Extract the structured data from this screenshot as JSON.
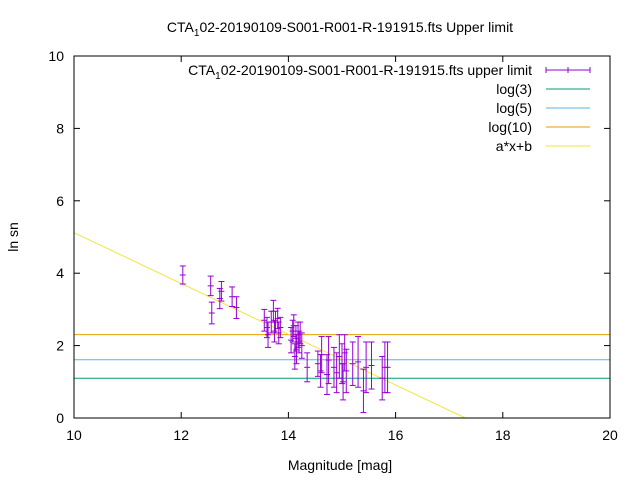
{
  "chart_data": {
    "type": "scatter",
    "title": {
      "prefix": "CTA",
      "subscript": "1",
      "suffix": "02-20190109-S001-R001-R-191915.fts Upper limit"
    },
    "xlabel": "Magnitude [mag]",
    "ylabel": "ln sn",
    "xlim": [
      10,
      20
    ],
    "ylim": [
      0,
      10
    ],
    "xticks": [
      10,
      12,
      14,
      16,
      18,
      20
    ],
    "yticks": [
      0,
      2,
      4,
      6,
      8,
      10
    ],
    "grid": false,
    "legend_position": "top-right",
    "series": [
      {
        "name": {
          "prefix": "CTA",
          "subscript": "1",
          "suffix": "02-20190109-S001-R001-R-191915.fts upper limit"
        },
        "kind": "errorbars",
        "color": "#9400d3",
        "points": [
          [
            12.03,
            3.95,
            0.25
          ],
          [
            12.55,
            3.65,
            0.27
          ],
          [
            12.57,
            2.9,
            0.3
          ],
          [
            12.72,
            3.3,
            0.28
          ],
          [
            12.75,
            3.5,
            0.27
          ],
          [
            12.95,
            3.35,
            0.27
          ],
          [
            13.03,
            3.05,
            0.3
          ],
          [
            13.55,
            2.7,
            0.3
          ],
          [
            13.6,
            2.5,
            0.28
          ],
          [
            13.62,
            2.3,
            0.35
          ],
          [
            13.68,
            2.65,
            0.3
          ],
          [
            13.72,
            2.95,
            0.3
          ],
          [
            13.74,
            2.4,
            0.3
          ],
          [
            13.76,
            2.65,
            0.3
          ],
          [
            13.8,
            2.75,
            0.28
          ],
          [
            13.82,
            2.35,
            0.3
          ],
          [
            13.85,
            2.5,
            0.28
          ],
          [
            14.05,
            2.15,
            0.35
          ],
          [
            14.08,
            2.4,
            0.3
          ],
          [
            14.1,
            2.55,
            0.3
          ],
          [
            14.12,
            1.7,
            0.35
          ],
          [
            14.14,
            2.2,
            0.35
          ],
          [
            14.15,
            1.9,
            0.4
          ],
          [
            14.18,
            2.3,
            0.35
          ],
          [
            14.2,
            2.1,
            0.3
          ],
          [
            14.22,
            2.35,
            0.3
          ],
          [
            14.25,
            2.0,
            0.35
          ],
          [
            14.35,
            1.4,
            0.4
          ],
          [
            14.55,
            1.5,
            0.35
          ],
          [
            14.6,
            1.3,
            0.45
          ],
          [
            14.62,
            1.75,
            0.5
          ],
          [
            14.72,
            1.2,
            0.55
          ],
          [
            14.75,
            1.6,
            0.65
          ],
          [
            14.85,
            1.4,
            0.55
          ],
          [
            14.9,
            1.25,
            0.55
          ],
          [
            14.95,
            1.7,
            0.6
          ],
          [
            15.0,
            1.5,
            0.55
          ],
          [
            15.02,
            1.0,
            0.5
          ],
          [
            15.05,
            1.8,
            0.5
          ],
          [
            15.08,
            1.3,
            0.6
          ],
          [
            15.2,
            1.5,
            0.6
          ],
          [
            15.3,
            1.55,
            0.7
          ],
          [
            15.4,
            0.75,
            0.6
          ],
          [
            15.45,
            1.4,
            0.7
          ],
          [
            15.55,
            1.45,
            0.65
          ],
          [
            15.75,
            1.1,
            0.6
          ],
          [
            15.8,
            1.4,
            0.7
          ],
          [
            15.85,
            1.4,
            0.7
          ]
        ]
      },
      {
        "name": "log(3)",
        "kind": "hline",
        "color": "#009e73",
        "y": 1.0986
      },
      {
        "name": "log(5)",
        "kind": "hline",
        "color": "#56b4e9",
        "y": 1.6094
      },
      {
        "name": "log(10)",
        "kind": "hline",
        "color": "#e69f00",
        "y": 2.3026
      },
      {
        "name": "a*x+b",
        "kind": "line",
        "color": "#f0e442",
        "x": [
          10,
          17.3
        ],
        "y": [
          5.12,
          0.0
        ]
      }
    ]
  }
}
